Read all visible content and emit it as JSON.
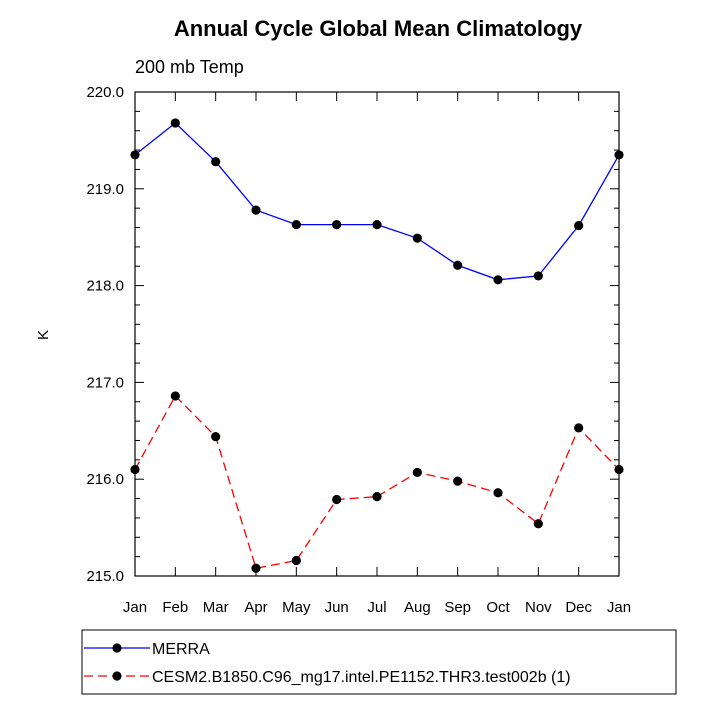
{
  "chart_data": {
    "type": "line",
    "title": "Annual Cycle Global Mean Climatology",
    "subtitle": "200 mb Temp",
    "ylabel": "K",
    "xlabel": "",
    "ylim": [
      215.0,
      220.0
    ],
    "yticks": [
      "215.0",
      "216.0",
      "217.0",
      "218.0",
      "219.0",
      "220.0"
    ],
    "categories": [
      "Jan",
      "Feb",
      "Mar",
      "Apr",
      "May",
      "Jun",
      "Jul",
      "Aug",
      "Sep",
      "Oct",
      "Nov",
      "Dec",
      "Jan"
    ],
    "series": [
      {
        "name": "MERRA",
        "color": "#0000ff",
        "style": "solid",
        "values": [
          219.35,
          219.68,
          219.28,
          218.78,
          218.63,
          218.63,
          218.63,
          218.49,
          218.21,
          218.06,
          218.1,
          218.62,
          219.35
        ]
      },
      {
        "name": "CESM2.B1850.C96_mg17.intel.PE1152.THR3.test002b (1)",
        "color": "#ff0000",
        "style": "dashed",
        "values": [
          216.1,
          216.86,
          216.44,
          215.08,
          215.16,
          215.79,
          215.82,
          216.07,
          215.98,
          215.86,
          215.54,
          216.53,
          216.1
        ]
      }
    ],
    "grid": false,
    "legend_position": "bottom"
  }
}
